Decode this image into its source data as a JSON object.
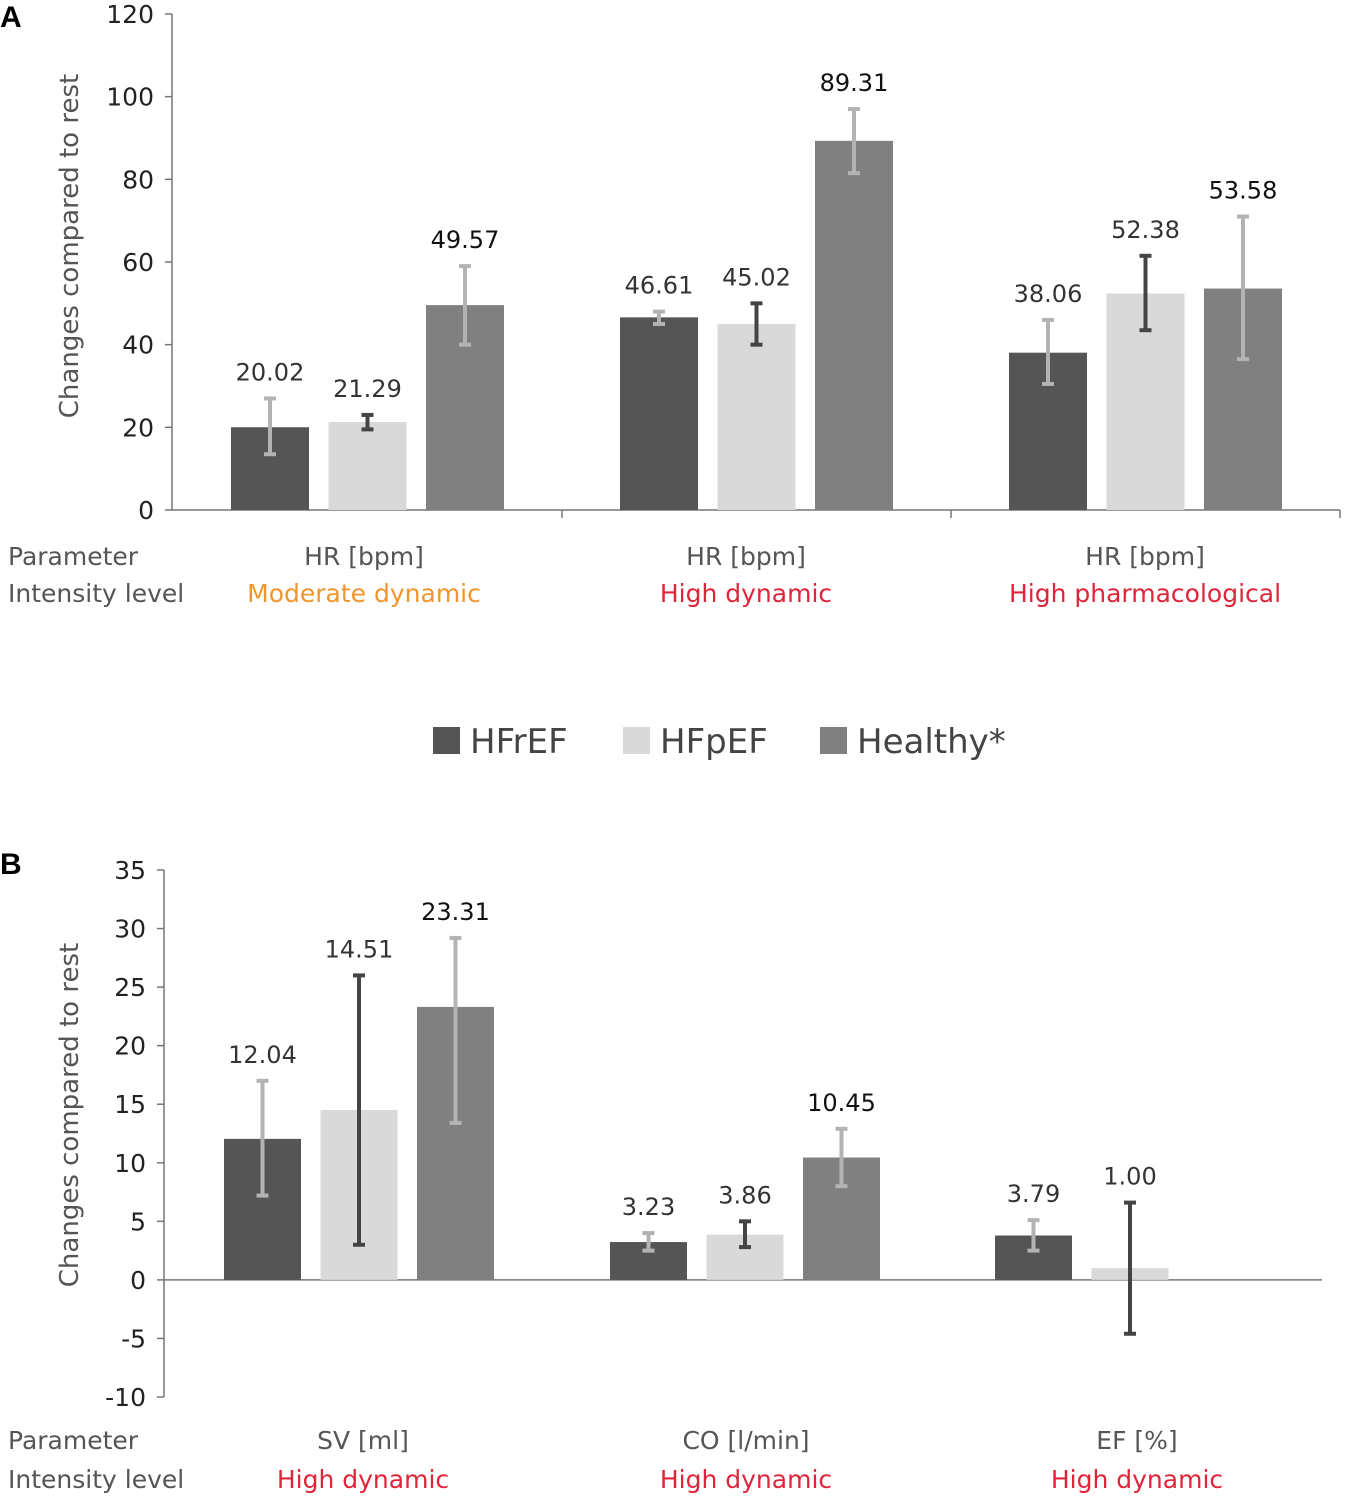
{
  "colors": {
    "HFrEF": "#555555",
    "HFpEF": "#d9d9d9",
    "Healthy*": "#808080",
    "axis": "#777777",
    "err_light": "#b3b3b3",
    "err_dark": "#444444",
    "moderate": "#f0962e",
    "high": "#e0253a"
  },
  "legend": {
    "items": [
      {
        "name": "HFrEF",
        "color": "#555555"
      },
      {
        "name": "HFpEF",
        "color": "#d9d9d9"
      },
      {
        "name": "Healthy*",
        "color": "#808080"
      }
    ]
  },
  "row_labels": {
    "parameter": "Parameter",
    "intensity": "Intensity level"
  },
  "chart_data": [
    {
      "panel": "A",
      "type": "bar",
      "ylabel": "Changes compared to rest",
      "ylim": [
        0,
        120
      ],
      "yticks": [
        0,
        20,
        40,
        60,
        80,
        100,
        120
      ],
      "series_names": [
        "HFrEF",
        "HFpEF",
        "Healthy*"
      ],
      "groups": [
        {
          "parameter": "HR [bpm]",
          "intensity": "Moderate dynamic",
          "intensity_color": "#f0962e",
          "bars": [
            {
              "series": "HFrEF",
              "value": 20.02,
              "label": "20.02",
              "err_low": 13.5,
              "err_high": 27,
              "err_color": "#b3b3b3",
              "bold": false
            },
            {
              "series": "HFpEF",
              "value": 21.29,
              "label": "21.29",
              "err_low": 19.5,
              "err_high": 23,
              "err_color": "#444444",
              "bold": false
            },
            {
              "series": "Healthy*",
              "value": 49.57,
              "label": "49.57",
              "err_low": 40,
              "err_high": 59,
              "err_color": "#b3b3b3",
              "bold": true
            }
          ]
        },
        {
          "parameter": "HR [bpm]",
          "intensity": "High dynamic",
          "intensity_color": "#e0253a",
          "bars": [
            {
              "series": "HFrEF",
              "value": 46.61,
              "label": "46.61",
              "err_low": 45,
              "err_high": 48,
              "err_color": "#b3b3b3",
              "bold": false
            },
            {
              "series": "HFpEF",
              "value": 45.02,
              "label": "45.02",
              "err_low": 40,
              "err_high": 50,
              "err_color": "#444444",
              "bold": false
            },
            {
              "series": "Healthy*",
              "value": 89.31,
              "label": "89.31",
              "err_low": 81.5,
              "err_high": 97,
              "err_color": "#b3b3b3",
              "bold": true
            }
          ]
        },
        {
          "parameter": "HR [bpm]",
          "intensity": "High pharmacological",
          "intensity_color": "#e0253a",
          "bars": [
            {
              "series": "HFrEF",
              "value": 38.06,
              "label": "38.06",
              "err_low": 30.5,
              "err_high": 46,
              "err_color": "#b3b3b3",
              "bold": false
            },
            {
              "series": "HFpEF",
              "value": 52.38,
              "label": "52.38",
              "err_low": 43.5,
              "err_high": 61.5,
              "err_color": "#444444",
              "bold": false
            },
            {
              "series": "Healthy*",
              "value": 53.58,
              "label": "53.58",
              "err_low": 36.5,
              "err_high": 71,
              "err_color": "#b3b3b3",
              "bold": true
            }
          ]
        }
      ]
    },
    {
      "panel": "B",
      "type": "bar",
      "ylabel": "Changes compared to rest",
      "ylim": [
        -10,
        35
      ],
      "yticks": [
        -10,
        -5,
        0,
        5,
        10,
        15,
        20,
        25,
        30,
        35
      ],
      "series_names": [
        "HFrEF",
        "HFpEF",
        "Healthy*"
      ],
      "groups": [
        {
          "parameter": "SV [ml]",
          "intensity": "High dynamic",
          "intensity_color": "#e0253a",
          "bars": [
            {
              "series": "HFrEF",
              "value": 12.04,
              "label": "12.04",
              "err_low": 7.2,
              "err_high": 17,
              "err_color": "#b3b3b3",
              "bold": false
            },
            {
              "series": "HFpEF",
              "value": 14.51,
              "label": "14.51",
              "err_low": 3,
              "err_high": 26,
              "err_color": "#444444",
              "bold": false
            },
            {
              "series": "Healthy*",
              "value": 23.31,
              "label": "23.31",
              "err_low": 13.4,
              "err_high": 29.2,
              "err_color": "#b3b3b3",
              "bold": true
            }
          ]
        },
        {
          "parameter": "CO [l/min]",
          "intensity": "High dynamic",
          "intensity_color": "#e0253a",
          "bars": [
            {
              "series": "HFrEF",
              "value": 3.23,
              "label": "3.23",
              "err_low": 2.5,
              "err_high": 4,
              "err_color": "#b3b3b3",
              "bold": false
            },
            {
              "series": "HFpEF",
              "value": 3.86,
              "label": "3.86",
              "err_low": 2.8,
              "err_high": 5,
              "err_color": "#444444",
              "bold": false
            },
            {
              "series": "Healthy*",
              "value": 10.45,
              "label": "10.45",
              "err_low": 8,
              "err_high": 12.9,
              "err_color": "#b3b3b3",
              "bold": true
            }
          ]
        },
        {
          "parameter": "EF   [%]",
          "intensity": "High dynamic",
          "intensity_color": "#e0253a",
          "bars": [
            {
              "series": "HFrEF",
              "value": 3.79,
              "label": "3.79",
              "err_low": 2.5,
              "err_high": 5.1,
              "err_color": "#b3b3b3",
              "bold": false
            },
            {
              "series": "HFpEF",
              "value": 1.0,
              "label": "1.00",
              "err_low": -4.6,
              "err_high": 6.6,
              "err_color": "#444444",
              "bold": false
            }
          ]
        }
      ]
    }
  ]
}
